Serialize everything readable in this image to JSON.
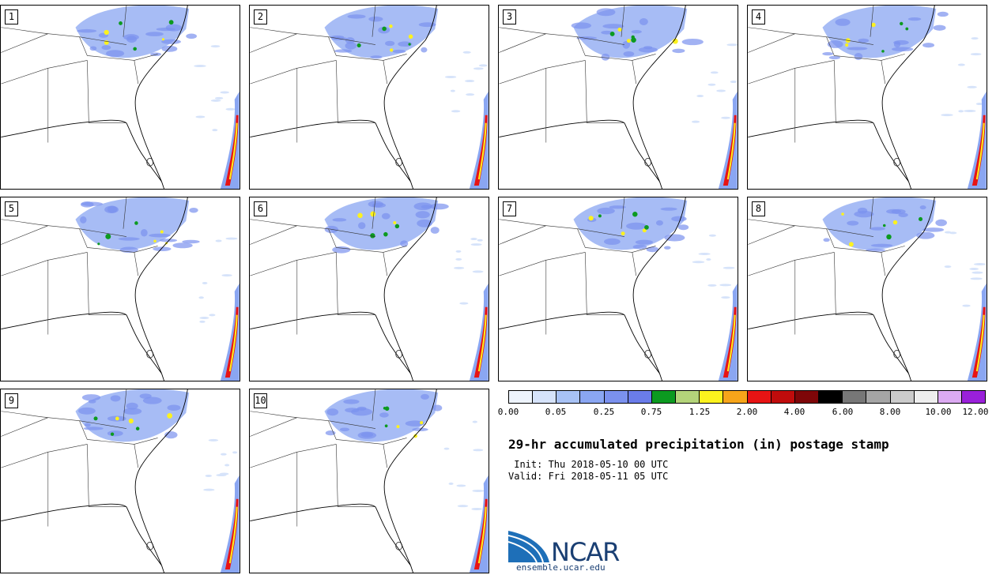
{
  "panels": [
    {
      "label": "1"
    },
    {
      "label": "2"
    },
    {
      "label": "3"
    },
    {
      "label": "4"
    },
    {
      "label": "5"
    },
    {
      "label": "6"
    },
    {
      "label": "7"
    },
    {
      "label": "8"
    },
    {
      "label": "9"
    },
    {
      "label": "10"
    }
  ],
  "colorbar": {
    "colors": [
      "#eef4fd",
      "#d6e3fa",
      "#a8c2f5",
      "#8aa6f2",
      "#7b91ee",
      "#6a7ce9",
      "#0c9a20",
      "#b4d47a",
      "#fcf21e",
      "#f7a51a",
      "#e81414",
      "#c00c0c",
      "#7e0608",
      "#000000",
      "#777777",
      "#a5a5a5",
      "#cbcbcb",
      "#eeeeee",
      "#dcaaf2",
      "#9a20da"
    ],
    "tick_labels": [
      "0.00",
      "0.05",
      "0.25",
      "0.75",
      "1.25",
      "2.00",
      "4.00",
      "6.00",
      "8.00",
      "10.00",
      "12.00"
    ]
  },
  "title": "29-hr accumulated precipitation (in) postage stamp",
  "init_line": " Init: Thu 2018-05-10 00 UTC",
  "valid_line": "Valid: Fri 2018-05-11 05 UTC",
  "logo": {
    "name": "NCAR",
    "url": "ensemble.ucar.edu"
  }
}
